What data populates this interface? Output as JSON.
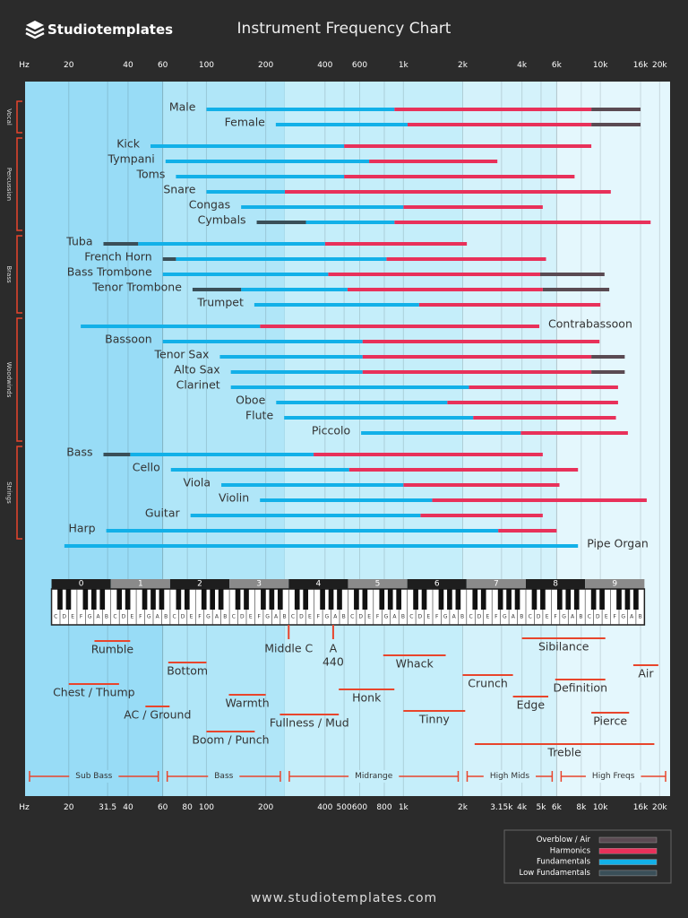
{
  "brand": "Studiotemplates",
  "footer": "www.studiotemplates.com",
  "chart_data": {
    "type": "range",
    "title": "Instrument Frequency Chart",
    "x_unit": "Hz",
    "xscale": "log",
    "xlim": [
      12,
      22600
    ],
    "xticks": [
      20,
      40,
      60,
      100,
      200,
      400,
      600,
      {
        "value": 1000,
        "label": "1k"
      },
      {
        "value": 2000,
        "label": "2k"
      },
      {
        "value": 4000,
        "label": "4k"
      },
      {
        "value": 6000,
        "label": "6k"
      },
      {
        "value": 10000,
        "label": "10k"
      },
      {
        "value": 16000,
        "label": "16k"
      },
      {
        "value": 20000,
        "label": "20k"
      }
    ],
    "xticks_bottom": [
      20,
      31.5,
      40,
      60,
      80,
      100,
      200,
      400,
      500,
      600,
      800,
      {
        "value": 1000,
        "label": "1k"
      },
      {
        "value": 2000,
        "label": "2k"
      },
      {
        "value": 3150,
        "label": "3.15k"
      },
      {
        "value": 4000,
        "label": "4k"
      },
      {
        "value": 5000,
        "label": "5k"
      },
      {
        "value": 6000,
        "label": "6k"
      },
      {
        "value": 8000,
        "label": "8k"
      },
      {
        "value": 10000,
        "label": "10k"
      },
      {
        "value": 16000,
        "label": "16k"
      },
      {
        "value": 20000,
        "label": "20k"
      }
    ],
    "grid": true,
    "legend": "bottom-right",
    "categories": [
      "Male",
      "Female",
      "Kick",
      "Tympani",
      "Toms",
      "Snare",
      "Congas",
      "Cymbals",
      "Tuba",
      "French Horn",
      "Bass Trombone",
      "Tenor Trombone",
      "Trumpet",
      "Contrabassoon",
      "Bassoon",
      "Tenor Sax",
      "Alto Sax",
      "Clarinet",
      "Oboe",
      "Flute",
      "Piccolo",
      "Bass",
      "Cello",
      "Viola",
      "Violin",
      "Guitar",
      "Harp",
      "Pipe Organ"
    ],
    "groups": [
      {
        "name": "Vocal",
        "count": 2
      },
      {
        "name": "Percussion",
        "count": 6
      },
      {
        "name": "Brass",
        "count": 5
      },
      {
        "name": "Woodwinds",
        "count": 8
      },
      {
        "name": "Strings",
        "count": 6
      }
    ],
    "series": [
      {
        "name": "Overblow / Air",
        "color": "#5a4a52",
        "values": [
          [
            9000,
            16000
          ],
          [
            9000,
            16000
          ],
          null,
          null,
          null,
          null,
          null,
          null,
          null,
          null,
          [
            4950,
            10500
          ],
          [
            5100,
            11100
          ],
          null,
          null,
          null,
          [
            9000,
            13300
          ],
          [
            9000,
            13300
          ],
          null,
          null,
          null,
          null,
          null,
          null,
          null,
          null,
          null,
          null,
          null
        ]
      },
      {
        "name": "Harmonics",
        "color": "#e8315a",
        "values": [
          [
            900,
            9000
          ],
          [
            1050,
            9000
          ],
          [
            500,
            9000
          ],
          [
            670,
            3000
          ],
          [
            500,
            7400
          ],
          [
            250,
            11300
          ],
          [
            1000,
            5100
          ],
          [
            900,
            18000
          ],
          [
            400,
            2100
          ],
          [
            820,
            5300
          ],
          [
            415,
            4950
          ],
          [
            520,
            5100
          ],
          [
            1200,
            10000
          ],
          [
            187,
            4900
          ],
          [
            620,
            9900
          ],
          [
            620,
            9000
          ],
          [
            620,
            9000
          ],
          [
            2150,
            12300
          ],
          [
            1670,
            12300
          ],
          [
            2260,
            12000
          ],
          [
            3940,
            13800
          ],
          [
            350,
            5100
          ],
          [
            530,
            7700
          ],
          [
            1000,
            6200
          ],
          [
            1400,
            17200
          ],
          [
            1220,
            5100
          ],
          [
            3030,
            6000
          ],
          null
        ]
      },
      {
        "name": "Fundamentals",
        "color": "#12b0e8",
        "values": [
          [
            100,
            900
          ],
          [
            225,
            1050
          ],
          [
            52,
            500
          ],
          [
            62,
            670
          ],
          [
            70,
            500
          ],
          [
            100,
            250
          ],
          [
            150,
            1000
          ],
          [
            320,
            900
          ],
          [
            45,
            400
          ],
          [
            70,
            820
          ],
          [
            60,
            415
          ],
          [
            150,
            520
          ],
          [
            175,
            1200
          ],
          [
            23,
            187
          ],
          [
            60,
            620
          ],
          [
            117,
            620
          ],
          [
            133,
            620
          ],
          [
            133,
            2150
          ],
          [
            226,
            1670
          ],
          [
            248,
            2260
          ],
          [
            610,
            3940
          ],
          [
            41,
            350
          ],
          [
            66,
            530
          ],
          [
            119,
            1000
          ],
          [
            187,
            1400
          ],
          [
            83,
            1220
          ],
          [
            31,
            3030
          ],
          [
            19,
            7700
          ]
        ]
      },
      {
        "name": "Low Fundamentals",
        "color": "#3a4f58",
        "values": [
          null,
          null,
          null,
          null,
          null,
          null,
          null,
          [
            180,
            320
          ],
          [
            30,
            45
          ],
          [
            60,
            70
          ],
          null,
          [
            85,
            150
          ],
          null,
          null,
          null,
          null,
          null,
          null,
          null,
          null,
          null,
          [
            30,
            41
          ],
          null,
          null,
          null,
          null,
          null,
          null
        ]
      }
    ],
    "bands": [
      {
        "name": "Sub Bass",
        "range": [
          20,
          60
        ],
        "color": "#98dcf6"
      },
      {
        "name": "Bass",
        "range": [
          60,
          250
        ],
        "color": "#b0e6f8"
      },
      {
        "name": "Midrange",
        "range": [
          250,
          2000
        ],
        "color": "#c5eefa"
      },
      {
        "name": "High Mids",
        "range": [
          2000,
          6000
        ],
        "color": "#d4f2fb"
      },
      {
        "name": "High Freqs",
        "range": [
          6000,
          20000
        ],
        "color": "#e4f7fd"
      }
    ],
    "piano": {
      "octaves": [
        0,
        1,
        2,
        3,
        4,
        5,
        6,
        7,
        8,
        9
      ],
      "notes": [
        "C",
        "D",
        "E",
        "F",
        "G",
        "A",
        "B"
      ],
      "xlim": [
        16.35,
        16744
      ]
    },
    "markers": [
      {
        "label": "Middle C",
        "value": 261.6
      },
      {
        "label": "A",
        "value": 440,
        "show_value": true
      }
    ],
    "descriptors": [
      {
        "label": "Rumble",
        "range": [
          27,
          41
        ]
      },
      {
        "label": "Bottom",
        "range": [
          64,
          100
        ]
      },
      {
        "label": "Chest / Thump",
        "range": [
          20,
          36
        ]
      },
      {
        "label": "AC / Ground",
        "range": [
          49,
          65
        ]
      },
      {
        "label": "Warmth",
        "range": [
          130,
          200
        ]
      },
      {
        "label": "Boom / Punch",
        "range": [
          100,
          176
        ]
      },
      {
        "label": "Fullness / Mud",
        "range": [
          236,
          470
        ]
      },
      {
        "label": "Honk",
        "range": [
          470,
          900
        ]
      },
      {
        "label": "Whack",
        "range": [
          790,
          1640
        ]
      },
      {
        "label": "Tinny",
        "range": [
          1000,
          2060
        ]
      },
      {
        "label": "Crunch",
        "range": [
          2000,
          3600
        ]
      },
      {
        "label": "Edge",
        "range": [
          3600,
          5440
        ]
      },
      {
        "label": "Sibilance",
        "range": [
          4000,
          10600
        ]
      },
      {
        "label": "Definition",
        "range": [
          5900,
          10600
        ]
      },
      {
        "label": "Pierce",
        "range": [
          9000,
          14000
        ]
      },
      {
        "label": "Air",
        "range": [
          14700,
          19700
        ]
      },
      {
        "label": "Treble",
        "range": [
          2300,
          18800
        ]
      }
    ]
  }
}
